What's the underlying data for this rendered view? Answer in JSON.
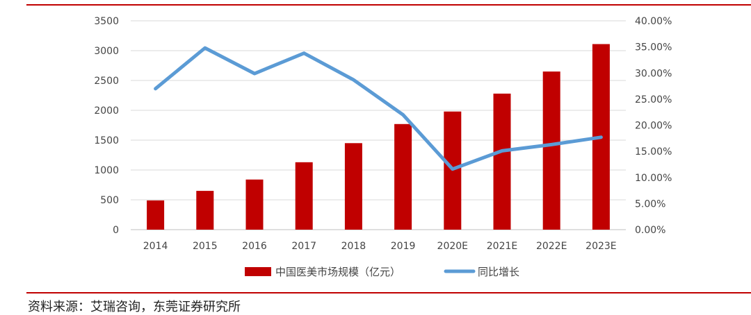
{
  "source": "资料来源：艾瑞咨询，东莞证券研究所",
  "chart_data": {
    "type": "bar",
    "categories": [
      "2014",
      "2015",
      "2016",
      "2017",
      "2018",
      "2019",
      "2020E",
      "2021E",
      "2022E",
      "2023E"
    ],
    "series": [
      {
        "name": "中国医美市场规模（亿元）",
        "type": "bar",
        "axis": "left",
        "color": "#c00000",
        "values": [
          490,
          650,
          840,
          1130,
          1450,
          1770,
          1980,
          2280,
          2650,
          3110
        ]
      },
      {
        "name": "同比增长",
        "type": "line",
        "axis": "right",
        "color": "#5b9bd5",
        "values": [
          27.0,
          34.8,
          29.9,
          33.8,
          28.7,
          22.0,
          11.6,
          15.1,
          16.3,
          17.7
        ]
      }
    ],
    "y_left": {
      "min": 0,
      "max": 3500,
      "step": 500,
      "ticks": [
        "0",
        "500",
        "1000",
        "1500",
        "2000",
        "2500",
        "3000",
        "3500"
      ]
    },
    "y_right": {
      "min": 0,
      "max": 40,
      "step": 5,
      "ticks": [
        "0.00%",
        "5.00%",
        "10.00%",
        "15.00%",
        "20.00%",
        "25.00%",
        "30.00%",
        "35.00%",
        "40.00%"
      ]
    },
    "grid": true,
    "legend": "bottom"
  }
}
